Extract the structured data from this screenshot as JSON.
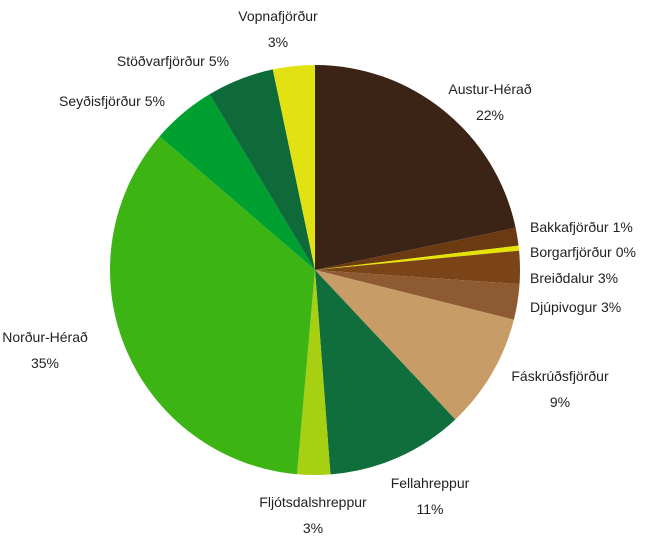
{
  "chart_data": {
    "type": "pie",
    "categories": [
      "Austur-Hérað",
      "Bakkafjörður",
      "Borgarfjörður",
      "Breiðdalur",
      "Djúpivogur",
      "Fáskrúðsfjörður",
      "Fellahreppur",
      "Fljótsdalshreppur",
      "Norður-Hérað",
      "Seyðisfjörður",
      "Stöðvarfjörður",
      "Vopnafjörður"
    ],
    "values": [
      21.7,
      1.4,
      0.4,
      2.6,
      2.8,
      9.1,
      10.8,
      2.6,
      34.9,
      5.1,
      5.3,
      3.3
    ],
    "value_labels": [
      "22%",
      "1%",
      "0%",
      "3%",
      "3%",
      "9%",
      "11%",
      "3%",
      "35%",
      "5%",
      "5%",
      "3%"
    ],
    "colors": [
      "#3b2416",
      "#6b3a10",
      "#e4e400",
      "#7a4418",
      "#8e5a32",
      "#c89c66",
      "#0f6e3c",
      "#a8d012",
      "#3cb414",
      "#00a030",
      "#0f6a3a",
      "#e2e212"
    ]
  }
}
